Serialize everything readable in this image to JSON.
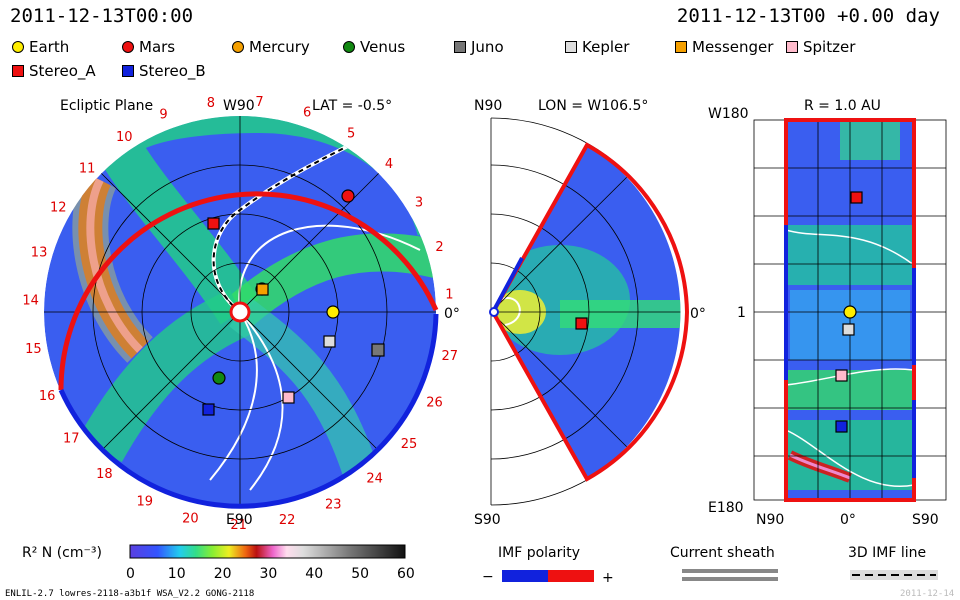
{
  "timestamp_left": "2011-12-13T00:00",
  "timestamp_right": "2011-12-13T00 +0.00 day",
  "legend": [
    {
      "label": "Earth",
      "color": "#ffee00",
      "shape": "circle"
    },
    {
      "label": "Mars",
      "color": "#ee1111",
      "shape": "circle"
    },
    {
      "label": "Mercury",
      "color": "#f5a000",
      "shape": "circle"
    },
    {
      "label": "Venus",
      "color": "#118811",
      "shape": "circle"
    },
    {
      "label": "Juno",
      "color": "#777777",
      "shape": "square"
    },
    {
      "label": "Kepler",
      "color": "#dddddd",
      "shape": "square"
    },
    {
      "label": "Messenger",
      "color": "#f5a000",
      "shape": "square"
    },
    {
      "label": "Spitzer",
      "color": "#ffbbcc",
      "shape": "square"
    },
    {
      "label": "Stereo_A",
      "color": "#ee1111",
      "shape": "square"
    },
    {
      "label": "Stereo_B",
      "color": "#1122dd",
      "shape": "square"
    }
  ],
  "panels": {
    "ecliptic": {
      "title": "Ecliptic Plane",
      "top_label": "W90",
      "bottom_label": "E90",
      "lat_label": "LAT = -0.5°",
      "zero_label": "0°",
      "carrington_labels": [
        "1",
        "2",
        "3",
        "4",
        "5",
        "6",
        "7",
        "8",
        "9",
        "10",
        "11",
        "12",
        "13",
        "14",
        "15",
        "16",
        "17",
        "18",
        "19",
        "20",
        "21",
        "22",
        "23",
        "24",
        "25",
        "26",
        "27"
      ]
    },
    "meridional": {
      "lon_label": "LON = W106.5°",
      "top_label": "N90",
      "bottom_label": "S90",
      "zero_label": "0°"
    },
    "r_surface": {
      "r_label": "R = 1.0 AU",
      "top_left_label": "W180",
      "bottom_left_label": "E180",
      "mid_left_label": "1",
      "bottom_labels": [
        "N90",
        "0°",
        "S90"
      ]
    }
  },
  "colorbar": {
    "label": "R² N (cm⁻³)",
    "ticks": [
      "0",
      "10",
      "20",
      "30",
      "40",
      "50",
      "60"
    ],
    "min": 0,
    "max": 60
  },
  "imf_polarity": {
    "title": "IMF polarity",
    "minus": "−",
    "plus": "+",
    "neg_color": "#1122dd",
    "pos_color": "#ee1111"
  },
  "current_sheath": {
    "title": "Current sheath"
  },
  "imf_line": {
    "title": "3D IMF line"
  },
  "footer_left": "ENLIL-2.7 lowres-2118-a3b1f WSA_V2.2 GONG-2118",
  "footer_right": "2011-12-14",
  "chart_data": {
    "type": "heatmap",
    "title": "",
    "quantity": "R² N (cm⁻³)",
    "range": [
      0,
      60
    ],
    "objects": [
      {
        "name": "Earth",
        "panel": "ecliptic"
      },
      {
        "name": "Mars",
        "panel": "ecliptic"
      },
      {
        "name": "Mercury",
        "panel": "ecliptic"
      },
      {
        "name": "Venus",
        "panel": "ecliptic"
      },
      {
        "name": "Juno",
        "panel": "ecliptic"
      },
      {
        "name": "Kepler",
        "panel": "ecliptic"
      },
      {
        "name": "Messenger",
        "panel": "ecliptic"
      },
      {
        "name": "Spitzer",
        "panel": "ecliptic"
      },
      {
        "name": "Stereo_A",
        "panel": "ecliptic"
      },
      {
        "name": "Stereo_B",
        "panel": "ecliptic"
      }
    ]
  }
}
